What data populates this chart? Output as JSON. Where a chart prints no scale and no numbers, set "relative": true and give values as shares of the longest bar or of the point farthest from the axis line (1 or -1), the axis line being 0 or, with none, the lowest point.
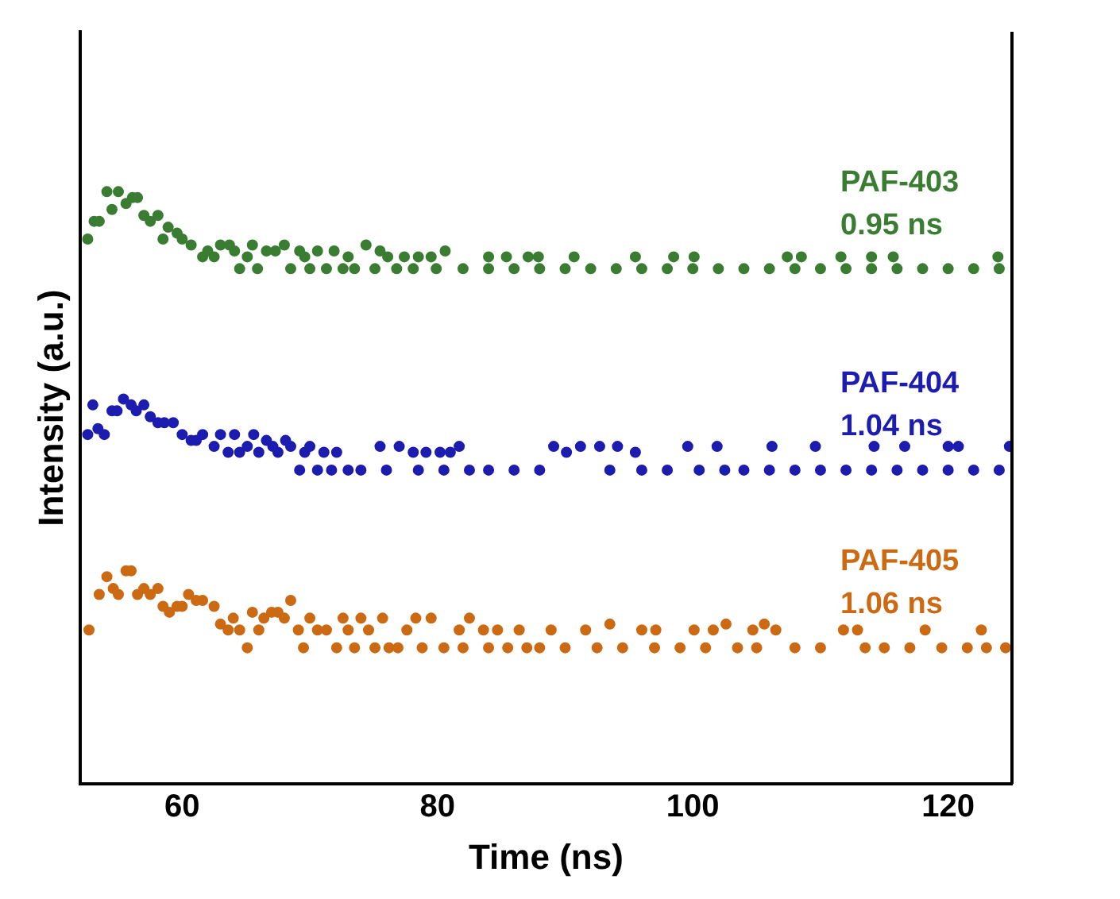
{
  "chart_data": {
    "type": "scatter",
    "xlabel": "Time (ns)",
    "ylabel": "Intensity (a.u.)",
    "relative": true,
    "xlim": [
      52,
      125
    ],
    "xticks": [
      60,
      80,
      100,
      120
    ],
    "grid": false,
    "legend": false,
    "marker": "circle",
    "series": [
      {
        "name": "PAF-403",
        "color": "#3a7d32",
        "x": [
          52.6,
          53.1,
          53.5,
          54.1,
          54.5,
          55.0,
          55.6,
          56.1,
          56.5,
          57.0,
          57.5,
          58.1,
          58.5,
          58.9,
          59.6,
          60.0,
          60.7,
          61.6,
          62.0,
          62.5,
          63.0,
          63.7,
          64.1,
          64.5,
          65.1,
          65.5,
          65.9,
          66.6,
          67.3,
          68.0,
          68.5,
          69.2,
          69.6,
          70.0,
          70.6,
          71.3,
          71.9,
          72.6,
          73.0,
          73.5,
          74.4,
          75.1,
          75.5,
          76.1,
          76.8,
          77.4,
          78.1,
          78.5,
          79.5,
          79.9,
          80.6,
          82,
          84,
          84.0,
          85.4,
          86,
          87.1,
          87.9,
          88,
          90,
          90.7,
          92,
          94,
          95.5,
          96,
          98,
          98.5,
          100,
          100.1,
          102,
          104,
          106,
          107.4,
          108,
          108.5,
          110,
          111.6,
          112,
          114,
          114.0,
          115.7,
          116,
          118,
          120,
          122,
          123.9,
          124
        ],
        "values": [
          0.92,
          0.95,
          0.95,
          1.0,
          0.97,
          1.0,
          0.98,
          0.99,
          0.99,
          0.96,
          0.95,
          0.96,
          0.92,
          0.94,
          0.93,
          0.92,
          0.91,
          0.89,
          0.9,
          0.89,
          0.91,
          0.91,
          0.9,
          0.87,
          0.89,
          0.91,
          0.87,
          0.9,
          0.9,
          0.91,
          0.87,
          0.9,
          0.89,
          0.87,
          0.9,
          0.87,
          0.9,
          0.87,
          0.89,
          0.87,
          0.91,
          0.87,
          0.9,
          0.89,
          0.87,
          0.89,
          0.87,
          0.89,
          0.89,
          0.87,
          0.9,
          0.87,
          0.87,
          0.89,
          0.89,
          0.87,
          0.89,
          0.89,
          0.87,
          0.87,
          0.89,
          0.87,
          0.87,
          0.89,
          0.87,
          0.87,
          0.89,
          0.87,
          0.89,
          0.87,
          0.87,
          0.87,
          0.89,
          0.87,
          0.89,
          0.87,
          0.89,
          0.87,
          0.87,
          0.89,
          0.89,
          0.87,
          0.87,
          0.87,
          0.87,
          0.89,
          0.87
        ]
      },
      {
        "name": "PAF-404",
        "color": "#1c1caf",
        "x": [
          52.6,
          53.0,
          53.4,
          53.9,
          54.5,
          54.9,
          55.4,
          56.0,
          56.4,
          57.0,
          57.5,
          58.1,
          58.6,
          59.3,
          60.0,
          60.7,
          61.1,
          61.6,
          62.5,
          63.0,
          63.6,
          64.1,
          64.5,
          65.1,
          65.6,
          66.0,
          66.6,
          67.1,
          67.5,
          68.1,
          68.5,
          69.2,
          69.6,
          70.0,
          70.6,
          71.1,
          71.7,
          72.1,
          73,
          74,
          75.5,
          76,
          77.0,
          78.1,
          78.5,
          79.1,
          80.2,
          80.5,
          81.0,
          81.7,
          82.5,
          84,
          86,
          88,
          89.1,
          90.1,
          91.2,
          92.7,
          93.5,
          94.1,
          95.5,
          96,
          98,
          99.6,
          100.5,
          101.9,
          102.5,
          104,
          106,
          106.2,
          108,
          109.6,
          110,
          112,
          114,
          114.2,
          116,
          116.6,
          118,
          120,
          120.0,
          120.8,
          122,
          124,
          124.8
        ],
        "values": [
          0.59,
          0.64,
          0.6,
          0.59,
          0.63,
          0.63,
          0.65,
          0.64,
          0.63,
          0.64,
          0.62,
          0.61,
          0.61,
          0.61,
          0.59,
          0.58,
          0.58,
          0.59,
          0.57,
          0.59,
          0.56,
          0.59,
          0.56,
          0.57,
          0.59,
          0.56,
          0.58,
          0.57,
          0.56,
          0.58,
          0.57,
          0.53,
          0.56,
          0.57,
          0.53,
          0.56,
          0.53,
          0.56,
          0.53,
          0.53,
          0.57,
          0.53,
          0.57,
          0.56,
          0.53,
          0.56,
          0.56,
          0.53,
          0.56,
          0.57,
          0.53,
          0.53,
          0.53,
          0.53,
          0.57,
          0.56,
          0.57,
          0.57,
          0.53,
          0.57,
          0.56,
          0.53,
          0.53,
          0.57,
          0.53,
          0.57,
          0.53,
          0.53,
          0.53,
          0.57,
          0.53,
          0.57,
          0.53,
          0.53,
          0.53,
          0.57,
          0.53,
          0.57,
          0.53,
          0.53,
          0.57,
          0.57,
          0.53,
          0.53,
          0.57
        ]
      },
      {
        "name": "PAF-405",
        "color": "#cc6a14",
        "x": [
          52.7,
          53.5,
          54.1,
          54.6,
          55.0,
          55.6,
          56.0,
          56.5,
          57.0,
          57.5,
          58.1,
          58.5,
          59.0,
          59.6,
          60.0,
          60.5,
          61.1,
          61.6,
          62.5,
          63.0,
          63.6,
          64.0,
          64.5,
          65.1,
          65.5,
          66.0,
          66.4,
          67.0,
          67.5,
          68.0,
          68.5,
          69.1,
          69.5,
          70.0,
          70.6,
          71.3,
          72.1,
          72.6,
          73.0,
          73.5,
          74.0,
          74.6,
          75.1,
          75.7,
          76.2,
          76.9,
          77.6,
          78.3,
          78.8,
          79.5,
          80.5,
          81.7,
          82,
          82.5,
          83.6,
          84,
          84.7,
          85.5,
          86.4,
          87,
          88,
          88.9,
          90,
          91.6,
          92.5,
          93.5,
          94.5,
          96.0,
          97,
          97.1,
          99,
          100.1,
          101,
          101.6,
          102.6,
          103.5,
          104.7,
          105,
          105.6,
          106.5,
          108,
          110,
          111.8,
          112.9,
          113.5,
          115,
          117,
          118.2,
          119.5,
          121.5,
          122.6,
          123,
          124.5
        ],
        "values": [
          0.26,
          0.32,
          0.35,
          0.33,
          0.32,
          0.36,
          0.36,
          0.32,
          0.33,
          0.32,
          0.33,
          0.3,
          0.29,
          0.3,
          0.3,
          0.32,
          0.31,
          0.31,
          0.3,
          0.27,
          0.26,
          0.28,
          0.26,
          0.23,
          0.29,
          0.26,
          0.28,
          0.29,
          0.29,
          0.28,
          0.31,
          0.26,
          0.23,
          0.28,
          0.26,
          0.26,
          0.23,
          0.28,
          0.26,
          0.23,
          0.28,
          0.26,
          0.23,
          0.28,
          0.23,
          0.23,
          0.26,
          0.28,
          0.23,
          0.28,
          0.23,
          0.26,
          0.23,
          0.28,
          0.26,
          0.23,
          0.26,
          0.23,
          0.26,
          0.23,
          0.23,
          0.26,
          0.23,
          0.26,
          0.23,
          0.27,
          0.23,
          0.26,
          0.23,
          0.26,
          0.23,
          0.26,
          0.23,
          0.26,
          0.27,
          0.23,
          0.26,
          0.23,
          0.27,
          0.26,
          0.23,
          0.23,
          0.26,
          0.26,
          0.23,
          0.23,
          0.23,
          0.26,
          0.23,
          0.23,
          0.26,
          0.23,
          0.23
        ]
      }
    ],
    "annotations": [
      "0.95 ns",
      "1.04 ns",
      "1.06 ns"
    ]
  }
}
